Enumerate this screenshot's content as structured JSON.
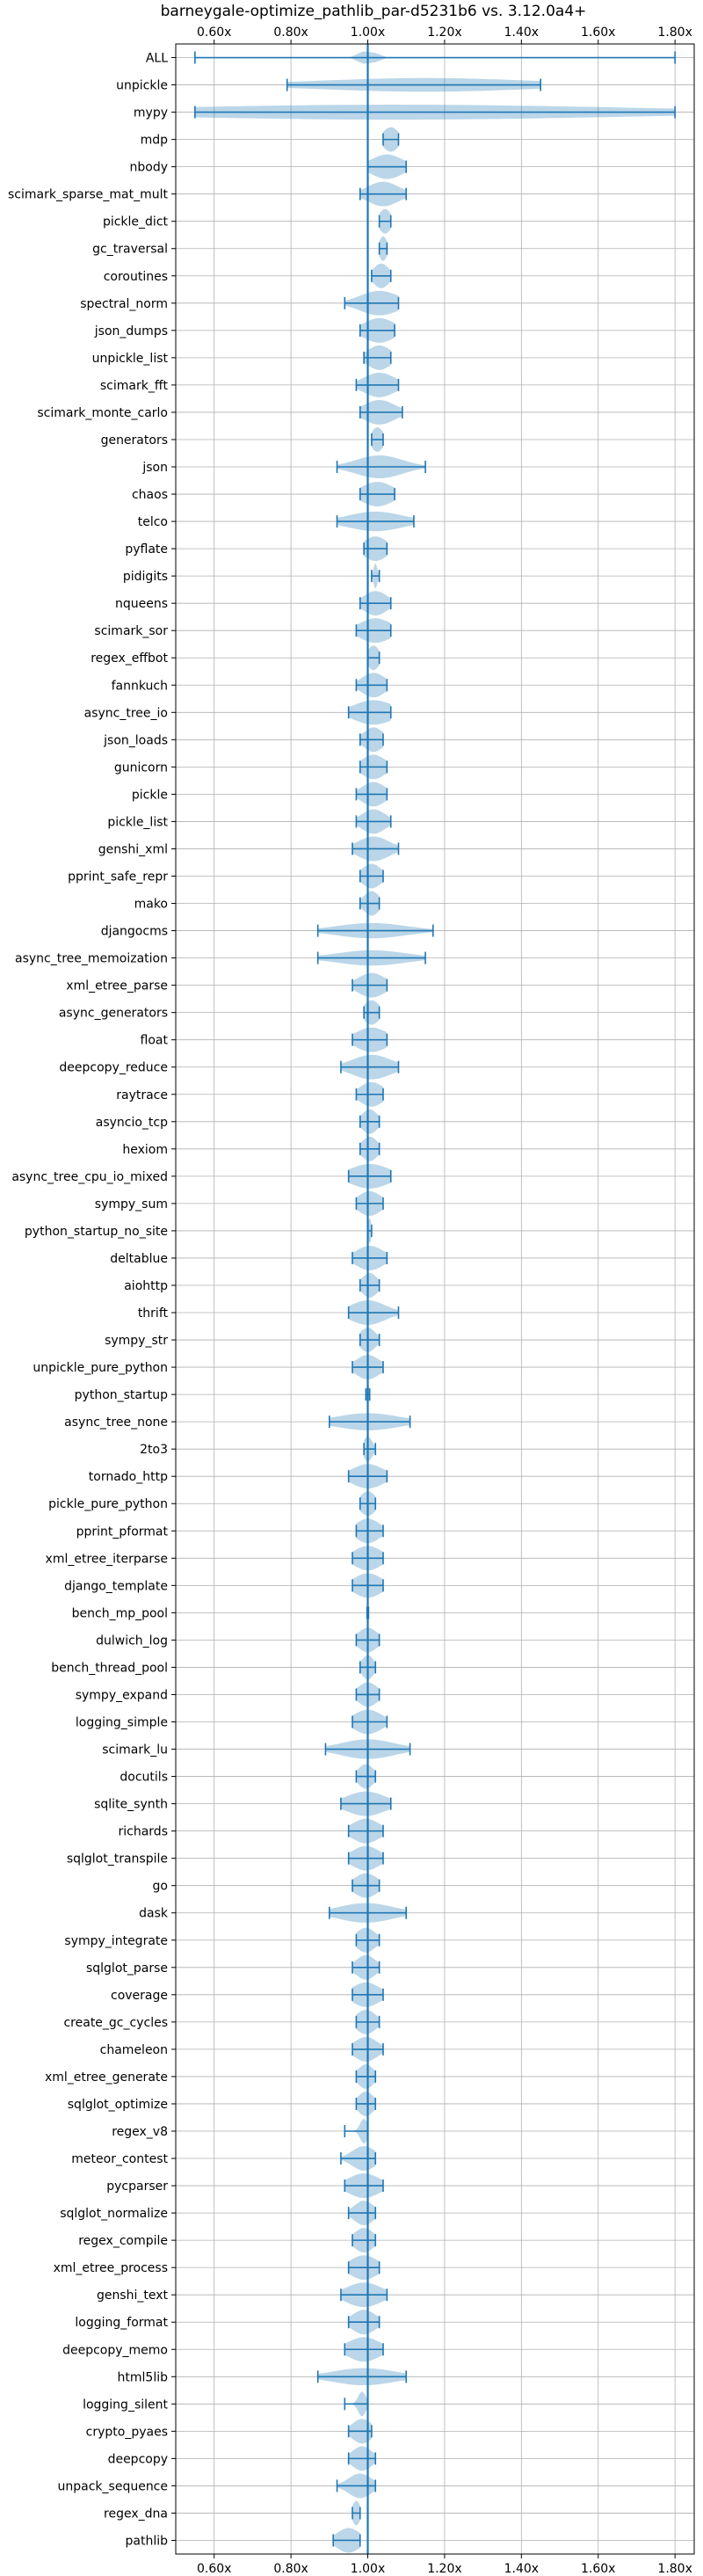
{
  "chart_data": {
    "type": "violin",
    "title": "barneygale-optimize_pathlib_par-d5231b6 vs. 3.12.0a4+",
    "xlim": [
      0.5,
      1.85
    ],
    "xticks": [
      0.6,
      0.8,
      1.0,
      1.2,
      1.4,
      1.6,
      1.8
    ],
    "xtick_labels": [
      "0.60x",
      "0.80x",
      "1.00x",
      "1.20x",
      "1.40x",
      "1.60x",
      "1.80x"
    ],
    "reference_line": 1.0,
    "grid": true,
    "accent_color": "#1f77b4",
    "benchmarks": [
      {
        "name": "ALL",
        "min": 0.55,
        "max": 1.8,
        "median": 1.0,
        "spread": 0.02
      },
      {
        "name": "unpickle",
        "min": 0.79,
        "max": 1.45,
        "median": 1.15,
        "spread": 0.28
      },
      {
        "name": "mypy",
        "min": 0.55,
        "max": 1.8,
        "median": 1.07,
        "spread": 0.6
      },
      {
        "name": "mdp",
        "min": 1.04,
        "max": 1.08,
        "median": 1.06,
        "spread": 0.02
      },
      {
        "name": "nbody",
        "min": 1.0,
        "max": 1.1,
        "median": 1.05,
        "spread": 0.04
      },
      {
        "name": "scimark_sparse_mat_mult",
        "min": 0.98,
        "max": 1.1,
        "median": 1.04,
        "spread": 0.04
      },
      {
        "name": "pickle_dict",
        "min": 1.03,
        "max": 1.06,
        "median": 1.045,
        "spread": 0.015
      },
      {
        "name": "gc_traversal",
        "min": 1.03,
        "max": 1.05,
        "median": 1.04,
        "spread": 0.01
      },
      {
        "name": "coroutines",
        "min": 1.01,
        "max": 1.06,
        "median": 1.035,
        "spread": 0.02
      },
      {
        "name": "spectral_norm",
        "min": 0.94,
        "max": 1.08,
        "median": 1.03,
        "spread": 0.05
      },
      {
        "name": "json_dumps",
        "min": 0.98,
        "max": 1.07,
        "median": 1.03,
        "spread": 0.04
      },
      {
        "name": "unpickle_list",
        "min": 0.99,
        "max": 1.06,
        "median": 1.03,
        "spread": 0.03
      },
      {
        "name": "scimark_fft",
        "min": 0.97,
        "max": 1.08,
        "median": 1.03,
        "spread": 0.04
      },
      {
        "name": "scimark_monte_carlo",
        "min": 0.98,
        "max": 1.09,
        "median": 1.03,
        "spread": 0.04
      },
      {
        "name": "generators",
        "min": 1.01,
        "max": 1.04,
        "median": 1.025,
        "spread": 0.015
      },
      {
        "name": "json",
        "min": 0.92,
        "max": 1.15,
        "median": 1.03,
        "spread": 0.06
      },
      {
        "name": "chaos",
        "min": 0.98,
        "max": 1.07,
        "median": 1.025,
        "spread": 0.04
      },
      {
        "name": "telco",
        "min": 0.92,
        "max": 1.12,
        "median": 1.02,
        "spread": 0.07
      },
      {
        "name": "pyflate",
        "min": 0.99,
        "max": 1.05,
        "median": 1.02,
        "spread": 0.03
      },
      {
        "name": "pidigits",
        "min": 1.01,
        "max": 1.03,
        "median": 1.02,
        "spread": 0.005
      },
      {
        "name": "nqueens",
        "min": 0.98,
        "max": 1.06,
        "median": 1.02,
        "spread": 0.03
      },
      {
        "name": "scimark_sor",
        "min": 0.97,
        "max": 1.06,
        "median": 1.02,
        "spread": 0.04
      },
      {
        "name": "regex_effbot",
        "min": 1.0,
        "max": 1.03,
        "median": 1.015,
        "spread": 0.015
      },
      {
        "name": "fannkuch",
        "min": 0.97,
        "max": 1.05,
        "median": 1.015,
        "spread": 0.03
      },
      {
        "name": "async_tree_io",
        "min": 0.95,
        "max": 1.06,
        "median": 1.015,
        "spread": 0.05
      },
      {
        "name": "json_loads",
        "min": 0.98,
        "max": 1.04,
        "median": 1.015,
        "spread": 0.025
      },
      {
        "name": "gunicorn",
        "min": 0.98,
        "max": 1.05,
        "median": 1.015,
        "spread": 0.03
      },
      {
        "name": "pickle",
        "min": 0.97,
        "max": 1.05,
        "median": 1.015,
        "spread": 0.03
      },
      {
        "name": "pickle_list",
        "min": 0.97,
        "max": 1.06,
        "median": 1.015,
        "spread": 0.03
      },
      {
        "name": "genshi_xml",
        "min": 0.96,
        "max": 1.08,
        "median": 1.015,
        "spread": 0.04
      },
      {
        "name": "pprint_safe_repr",
        "min": 0.98,
        "max": 1.04,
        "median": 1.01,
        "spread": 0.025
      },
      {
        "name": "mako",
        "min": 0.98,
        "max": 1.03,
        "median": 1.01,
        "spread": 0.02
      },
      {
        "name": "djangocms",
        "min": 0.87,
        "max": 1.17,
        "median": 1.01,
        "spread": 0.09
      },
      {
        "name": "async_tree_memoization",
        "min": 0.87,
        "max": 1.15,
        "median": 1.01,
        "spread": 0.09
      },
      {
        "name": "xml_etree_parse",
        "min": 0.96,
        "max": 1.05,
        "median": 1.01,
        "spread": 0.035
      },
      {
        "name": "async_generators",
        "min": 0.99,
        "max": 1.03,
        "median": 1.01,
        "spread": 0.02
      },
      {
        "name": "float",
        "min": 0.96,
        "max": 1.05,
        "median": 1.01,
        "spread": 0.04
      },
      {
        "name": "deepcopy_reduce",
        "min": 0.93,
        "max": 1.08,
        "median": 1.01,
        "spread": 0.05
      },
      {
        "name": "raytrace",
        "min": 0.97,
        "max": 1.04,
        "median": 1.01,
        "spread": 0.03
      },
      {
        "name": "asyncio_tcp",
        "min": 0.98,
        "max": 1.03,
        "median": 1.005,
        "spread": 0.02
      },
      {
        "name": "hexiom",
        "min": 0.98,
        "max": 1.03,
        "median": 1.005,
        "spread": 0.02
      },
      {
        "name": "async_tree_cpu_io_mixed",
        "min": 0.95,
        "max": 1.06,
        "median": 1.005,
        "spread": 0.05
      },
      {
        "name": "sympy_sum",
        "min": 0.97,
        "max": 1.04,
        "median": 1.005,
        "spread": 0.03
      },
      {
        "name": "python_startup_no_site",
        "min": 1.0,
        "max": 1.01,
        "median": 1.005,
        "spread": 0.004
      },
      {
        "name": "deltablue",
        "min": 0.96,
        "max": 1.05,
        "median": 1.005,
        "spread": 0.035
      },
      {
        "name": "aiohttp",
        "min": 0.98,
        "max": 1.03,
        "median": 1.005,
        "spread": 0.02
      },
      {
        "name": "thrift",
        "min": 0.95,
        "max": 1.08,
        "median": 1.0,
        "spread": 0.045
      },
      {
        "name": "sympy_str",
        "min": 0.98,
        "max": 1.03,
        "median": 1.0,
        "spread": 0.02
      },
      {
        "name": "unpickle_pure_python",
        "min": 0.96,
        "max": 1.04,
        "median": 1.0,
        "spread": 0.03
      },
      {
        "name": "python_startup",
        "min": 0.995,
        "max": 1.005,
        "median": 1.0,
        "spread": 0.003
      },
      {
        "name": "async_tree_none",
        "min": 0.9,
        "max": 1.11,
        "median": 1.0,
        "spread": 0.08
      },
      {
        "name": "2to3",
        "min": 0.99,
        "max": 1.02,
        "median": 1.0,
        "spread": 0.012
      },
      {
        "name": "tornado_http",
        "min": 0.95,
        "max": 1.05,
        "median": 1.0,
        "spread": 0.04
      },
      {
        "name": "pickle_pure_python",
        "min": 0.98,
        "max": 1.02,
        "median": 1.0,
        "spread": 0.02
      },
      {
        "name": "pprint_pformat",
        "min": 0.97,
        "max": 1.04,
        "median": 1.0,
        "spread": 0.03
      },
      {
        "name": "xml_etree_iterparse",
        "min": 0.96,
        "max": 1.04,
        "median": 1.0,
        "spread": 0.035
      },
      {
        "name": "django_template",
        "min": 0.96,
        "max": 1.04,
        "median": 1.0,
        "spread": 0.035
      },
      {
        "name": "bench_mp_pool",
        "min": 0.998,
        "max": 1.002,
        "median": 1.0,
        "spread": 0.002
      },
      {
        "name": "dulwich_log",
        "min": 0.97,
        "max": 1.03,
        "median": 1.0,
        "spread": 0.025
      },
      {
        "name": "bench_thread_pool",
        "min": 0.98,
        "max": 1.02,
        "median": 1.0,
        "spread": 0.015
      },
      {
        "name": "sympy_expand",
        "min": 0.97,
        "max": 1.03,
        "median": 1.0,
        "spread": 0.025
      },
      {
        "name": "logging_simple",
        "min": 0.96,
        "max": 1.05,
        "median": 1.0,
        "spread": 0.035
      },
      {
        "name": "scimark_lu",
        "min": 0.89,
        "max": 1.11,
        "median": 1.0,
        "spread": 0.07
      },
      {
        "name": "docutils",
        "min": 0.97,
        "max": 1.02,
        "median": 0.995,
        "spread": 0.02
      },
      {
        "name": "sqlite_synth",
        "min": 0.93,
        "max": 1.06,
        "median": 0.995,
        "spread": 0.05
      },
      {
        "name": "richards",
        "min": 0.95,
        "max": 1.04,
        "median": 0.995,
        "spread": 0.035
      },
      {
        "name": "sqlglot_transpile",
        "min": 0.95,
        "max": 1.04,
        "median": 0.995,
        "spread": 0.035
      },
      {
        "name": "go",
        "min": 0.96,
        "max": 1.03,
        "median": 0.995,
        "spread": 0.03
      },
      {
        "name": "dask",
        "min": 0.9,
        "max": 1.1,
        "median": 0.995,
        "spread": 0.07
      },
      {
        "name": "sympy_integrate",
        "min": 0.97,
        "max": 1.03,
        "median": 0.995,
        "spread": 0.025
      },
      {
        "name": "sqlglot_parse",
        "min": 0.96,
        "max": 1.03,
        "median": 0.995,
        "spread": 0.025
      },
      {
        "name": "coverage",
        "min": 0.96,
        "max": 1.04,
        "median": 0.995,
        "spread": 0.035
      },
      {
        "name": "create_gc_cycles",
        "min": 0.97,
        "max": 1.03,
        "median": 0.995,
        "spread": 0.025
      },
      {
        "name": "chameleon",
        "min": 0.96,
        "max": 1.04,
        "median": 0.995,
        "spread": 0.03
      },
      {
        "name": "xml_etree_generate",
        "min": 0.97,
        "max": 1.02,
        "median": 0.995,
        "spread": 0.02
      },
      {
        "name": "sqlglot_optimize",
        "min": 0.97,
        "max": 1.02,
        "median": 0.995,
        "spread": 0.02
      },
      {
        "name": "regex_v8",
        "min": 0.94,
        "max": 1.0,
        "median": 0.99,
        "spread": 0.01
      },
      {
        "name": "meteor_contest",
        "min": 0.93,
        "max": 1.02,
        "median": 0.99,
        "spread": 0.03
      },
      {
        "name": "pycparser",
        "min": 0.94,
        "max": 1.04,
        "median": 0.99,
        "spread": 0.04
      },
      {
        "name": "sqlglot_normalize",
        "min": 0.95,
        "max": 1.02,
        "median": 0.99,
        "spread": 0.025
      },
      {
        "name": "regex_compile",
        "min": 0.96,
        "max": 1.02,
        "median": 0.99,
        "spread": 0.025
      },
      {
        "name": "xml_etree_process",
        "min": 0.95,
        "max": 1.03,
        "median": 0.99,
        "spread": 0.035
      },
      {
        "name": "genshi_text",
        "min": 0.93,
        "max": 1.05,
        "median": 0.99,
        "spread": 0.045
      },
      {
        "name": "logging_format",
        "min": 0.95,
        "max": 1.03,
        "median": 0.99,
        "spread": 0.03
      },
      {
        "name": "deepcopy_memo",
        "min": 0.94,
        "max": 1.04,
        "median": 0.99,
        "spread": 0.04
      },
      {
        "name": "html5lib",
        "min": 0.87,
        "max": 1.1,
        "median": 0.99,
        "spread": 0.08
      },
      {
        "name": "logging_silent",
        "min": 0.94,
        "max": 1.0,
        "median": 0.985,
        "spread": 0.01
      },
      {
        "name": "crypto_pyaes",
        "min": 0.95,
        "max": 1.01,
        "median": 0.985,
        "spread": 0.025
      },
      {
        "name": "deepcopy",
        "min": 0.95,
        "max": 1.02,
        "median": 0.985,
        "spread": 0.025
      },
      {
        "name": "unpack_sequence",
        "min": 0.92,
        "max": 1.02,
        "median": 0.98,
        "spread": 0.03
      },
      {
        "name": "regex_dna",
        "min": 0.96,
        "max": 0.98,
        "median": 0.97,
        "spread": 0.01
      },
      {
        "name": "pathlib",
        "min": 0.91,
        "max": 0.98,
        "median": 0.95,
        "spread": 0.03
      }
    ]
  }
}
